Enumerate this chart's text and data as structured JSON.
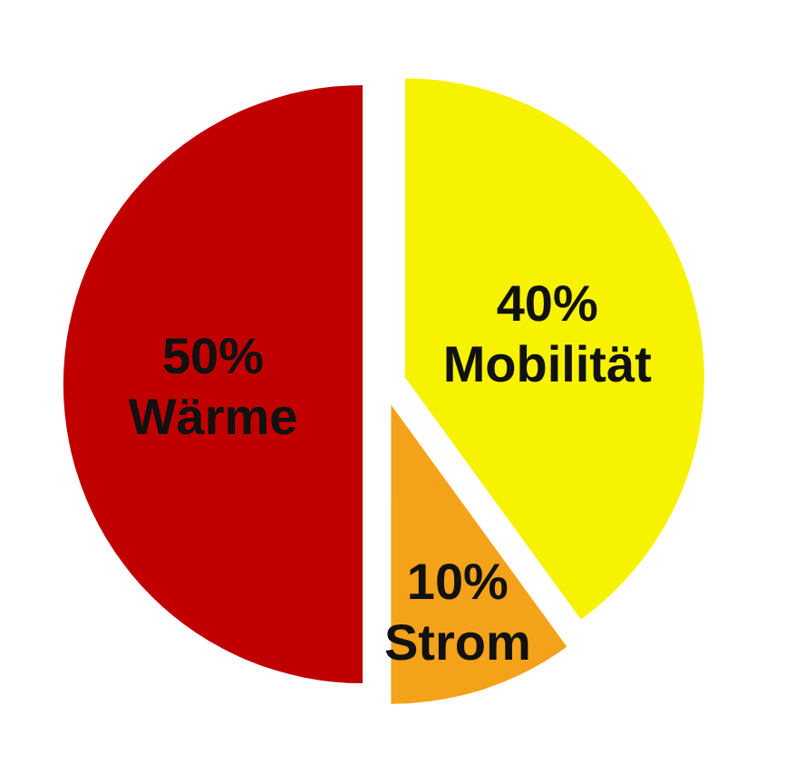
{
  "chart_data": {
    "type": "pie",
    "categories": [
      "Mobilität",
      "Strom",
      "Wärme"
    ],
    "values": [
      40,
      10,
      50
    ],
    "colors": [
      "#f7f200",
      "#f4a21a",
      "#c00000"
    ],
    "value_labels": [
      "40%",
      "10%",
      "50%"
    ]
  }
}
